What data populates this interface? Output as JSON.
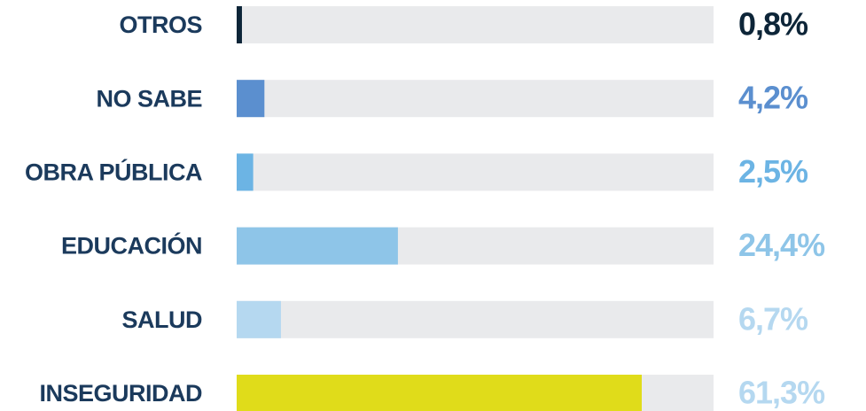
{
  "chart_data": {
    "type": "hbar",
    "categories": [
      "OTROS",
      "NO SABE",
      "OBRA PÚBLICA",
      "EDUCACIÓN",
      "SALUD",
      "INSEGURIDAD"
    ],
    "values": [
      0.8,
      4.2,
      2.5,
      24.4,
      6.7,
      61.3
    ],
    "value_labels": [
      "0,8%",
      "4,2%",
      "2,5%",
      "24,4%",
      "6,7%",
      "61,3%"
    ],
    "colors": [
      "#0d2538",
      "#5b8fcf",
      "#6cb4e4",
      "#8ec5e8",
      "#b5d8f0",
      "#e0dc1a"
    ],
    "label_colors": [
      "#0d2538",
      "#5b8fcf",
      "#6cb4e4",
      "#8ec5e8",
      "#b5d8f0",
      "#b5d8f0"
    ]
  }
}
